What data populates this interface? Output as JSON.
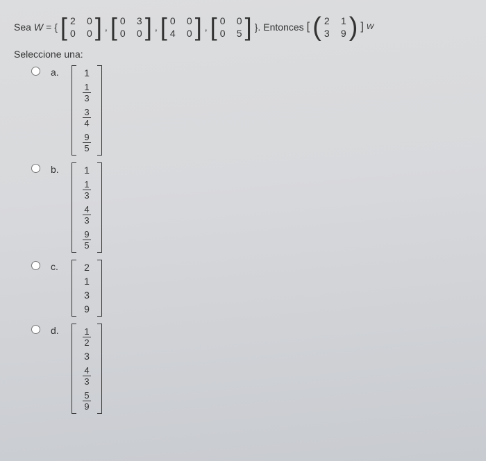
{
  "question": {
    "lead": "Sea ",
    "W": "W",
    "eq": " = { ",
    "matrices": [
      {
        "rows": [
          [
            "2",
            "0"
          ],
          [
            "0",
            "0"
          ]
        ]
      },
      {
        "rows": [
          [
            "0",
            "3"
          ],
          [
            "0",
            "0"
          ]
        ]
      },
      {
        "rows": [
          [
            "0",
            "0"
          ],
          [
            "4",
            "0"
          ]
        ]
      },
      {
        "rows": [
          [
            "0",
            "0"
          ],
          [
            "0",
            "5"
          ]
        ]
      }
    ],
    "close": " }. ",
    "then": "Entonces ",
    "target": {
      "rows": [
        [
          "2",
          "1"
        ],
        [
          "3",
          "9"
        ]
      ]
    },
    "subscript": "W",
    "lbr_outer": "[",
    "rbr_outer": "]"
  },
  "prompt": "Seleccione una:",
  "options": [
    {
      "label": "a.",
      "cells": [
        {
          "t": "n",
          "v": "1"
        },
        {
          "t": "f",
          "n": "1",
          "d": "3"
        },
        {
          "t": "f",
          "n": "3",
          "d": "4"
        },
        {
          "t": "f",
          "n": "9",
          "d": "5"
        }
      ]
    },
    {
      "label": "b.",
      "cells": [
        {
          "t": "n",
          "v": "1"
        },
        {
          "t": "f",
          "n": "1",
          "d": "3"
        },
        {
          "t": "f",
          "n": "4",
          "d": "3"
        },
        {
          "t": "f",
          "n": "9",
          "d": "5"
        }
      ]
    },
    {
      "label": "c.",
      "cells": [
        {
          "t": "n",
          "v": "2"
        },
        {
          "t": "n",
          "v": "1"
        },
        {
          "t": "n",
          "v": "3"
        },
        {
          "t": "n",
          "v": "9"
        }
      ]
    },
    {
      "label": "d.",
      "cells": [
        {
          "t": "f",
          "n": "1",
          "d": "2"
        },
        {
          "t": "n",
          "v": "3"
        },
        {
          "t": "f",
          "n": "4",
          "d": "3"
        },
        {
          "t": "f",
          "n": "5",
          "d": "9"
        }
      ]
    }
  ],
  "style": {
    "text_color": "#333333",
    "font_family": "Arial, sans-serif",
    "base_fontsize": 14
  }
}
